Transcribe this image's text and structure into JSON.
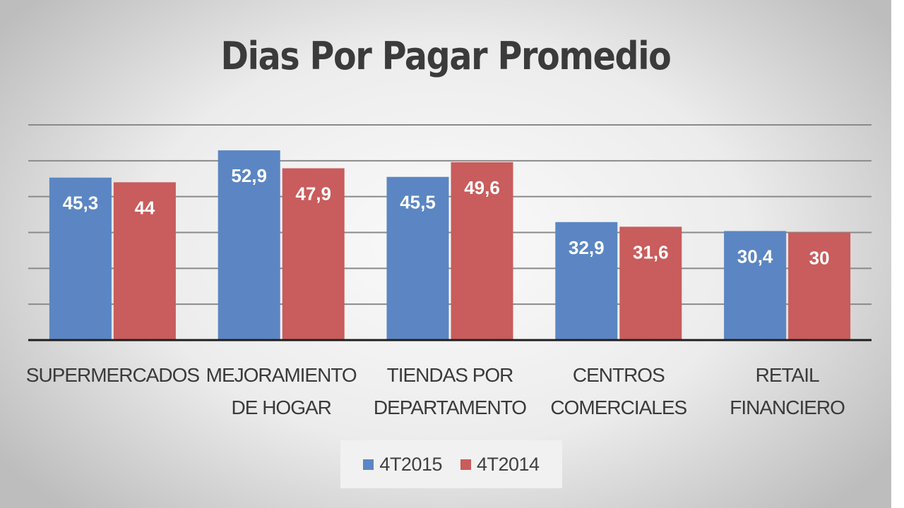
{
  "colors": {
    "series_4T2015": "#5b86c3",
    "series_4T2014": "#c95c5c"
  },
  "chart_data": {
    "type": "bar",
    "title": "Dias Por Pagar Promedio",
    "xlabel": "",
    "ylabel": "",
    "categories": [
      [
        "SUPERMERCADOS"
      ],
      [
        "MEJORAMIENTO",
        "DE HOGAR"
      ],
      [
        "TIENDAS POR",
        "DEPARTAMENTO"
      ],
      [
        "CENTROS",
        "COMERCIALES"
      ],
      [
        "RETAIL",
        "FINANCIERO"
      ]
    ],
    "series": [
      {
        "name": "4T2015",
        "values": [
          45.3,
          52.9,
          45.5,
          32.9,
          30.4
        ],
        "labels": [
          "45,3",
          "52,9",
          "45,5",
          "32,9",
          "30,4"
        ]
      },
      {
        "name": "4T2014",
        "values": [
          44,
          47.9,
          49.6,
          31.6,
          30
        ],
        "labels": [
          "44",
          "47,9",
          "49,6",
          "31,6",
          "30"
        ]
      }
    ],
    "ylim": [
      0,
      60
    ],
    "grid": true,
    "legend_position": "bottom"
  }
}
